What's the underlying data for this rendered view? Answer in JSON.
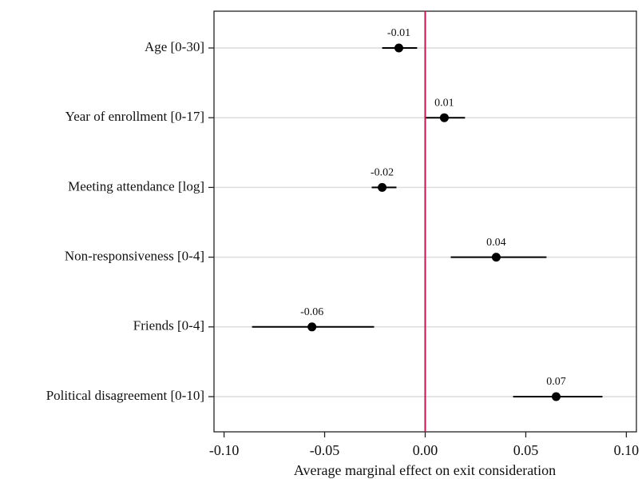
{
  "chart_data": {
    "type": "coefplot",
    "x_label": "Average marginal effect on exit consideration",
    "categories": [
      "Age [0-30]",
      "Year of enrollment [0-17]",
      "Meeting attendance [log]",
      "Non-responsiveness [0-4]",
      "Friends [0-4]",
      "Political disagreement [0-10]"
    ],
    "values": [
      -0.0131,
      0.0095,
      -0.0214,
      0.0353,
      -0.0563,
      0.0651
    ],
    "value_labels": [
      "-0.01",
      "0.01",
      "-0.02",
      "0.04",
      "-0.06",
      "0.07"
    ],
    "ci_low": [
      -0.0214,
      0.0004,
      -0.0266,
      0.0127,
      -0.0861,
      0.0437
    ],
    "ci_high": [
      -0.004,
      0.0198,
      -0.0143,
      0.0603,
      -0.0254,
      0.0881
    ],
    "color": "#000000",
    "xlim": [
      -0.105,
      0.105
    ],
    "xticks": [
      {
        "value": -0.1,
        "label": "-0.10"
      },
      -0.05,
      {
        "value": 0,
        "label": "0.00"
      },
      0.05,
      {
        "value": 0.1,
        "label": "0.10"
      }
    ],
    "reference_line": {
      "value": 0,
      "color": "#c8144b"
    },
    "grid": true
  }
}
